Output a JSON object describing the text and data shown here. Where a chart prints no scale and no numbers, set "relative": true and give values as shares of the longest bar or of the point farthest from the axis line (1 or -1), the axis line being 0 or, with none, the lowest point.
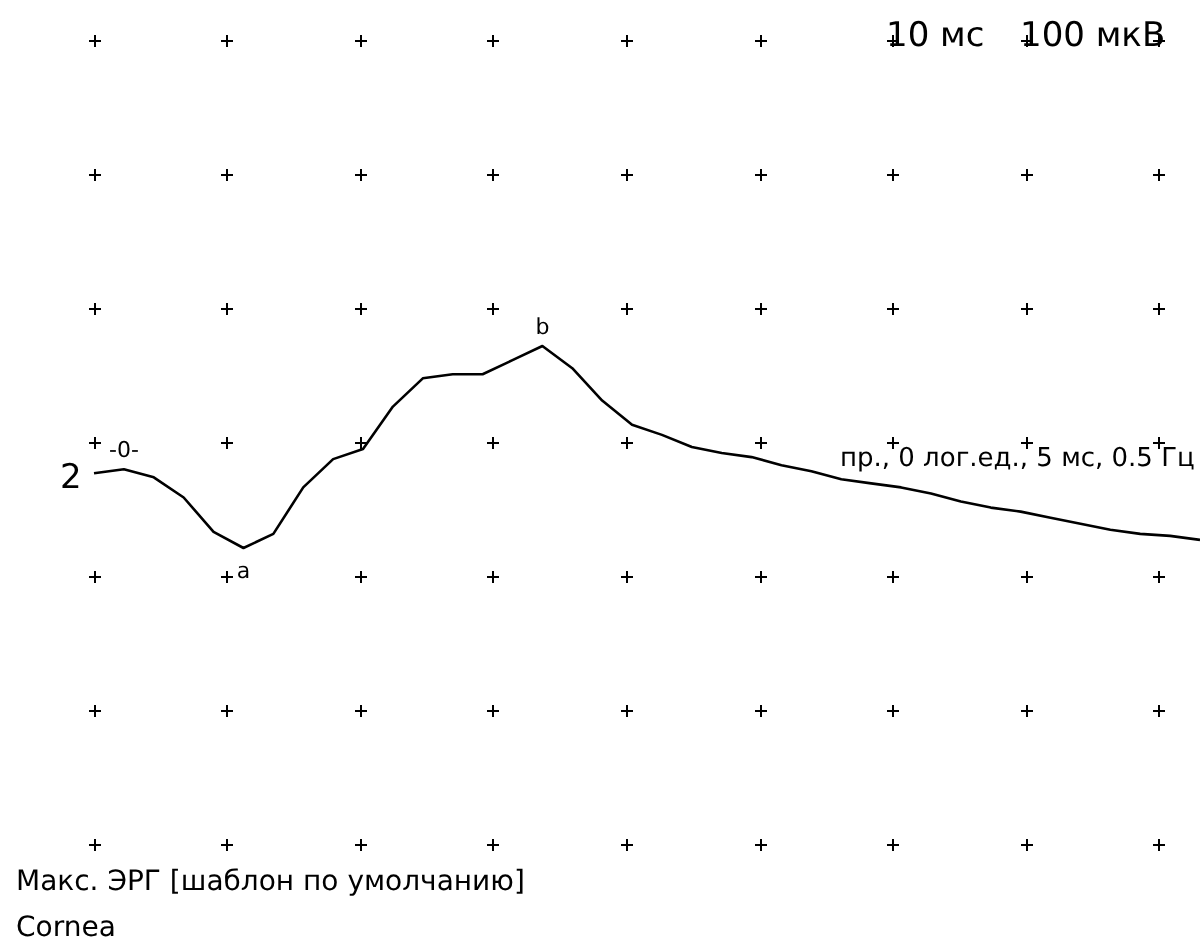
{
  "chart_data": {
    "type": "line",
    "relative": true,
    "marker": "none",
    "line_style": "solid",
    "categories": [
      null,
      null,
      null,
      null,
      null,
      null,
      null,
      null,
      null,
      null,
      null,
      null,
      null,
      null,
      null,
      null,
      null,
      null,
      null,
      null,
      null,
      null,
      null,
      null,
      null,
      null,
      null,
      null,
      null,
      null,
      null,
      null,
      null,
      null,
      null,
      null,
      null,
      null
    ],
    "series": [
      {
        "color": "#000000",
        "values": [
          0.37,
          0.39,
          0.35,
          0.25,
          0.08,
          0,
          0.07,
          0.3,
          0.44,
          0.49,
          0.7,
          0.84,
          0.86,
          0.86,
          0.93,
          1,
          0.89,
          0.73,
          0.61,
          0.56,
          0.5,
          0.47,
          0.45,
          0.41,
          0.38,
          0.34,
          0.32,
          0.3,
          0.27,
          0.23,
          0.2,
          0.18,
          0.15,
          0.12,
          0.09,
          0.07,
          0.06,
          0.04
        ]
      }
    ],
    "annotations": [
      "10 мс",
      "100 мкВ",
      "2",
      "пр., 0 лог.ед., 5 мс, 0.5 Гц",
      "Макс. ЭРГ [шаблон по умолчанию]",
      "Cornea",
      {
        "text": "-0-",
        "y": 0.39
      },
      {
        "text": "a",
        "y": 0
      },
      {
        "text": "b",
        "y": 1
      }
    ]
  }
}
